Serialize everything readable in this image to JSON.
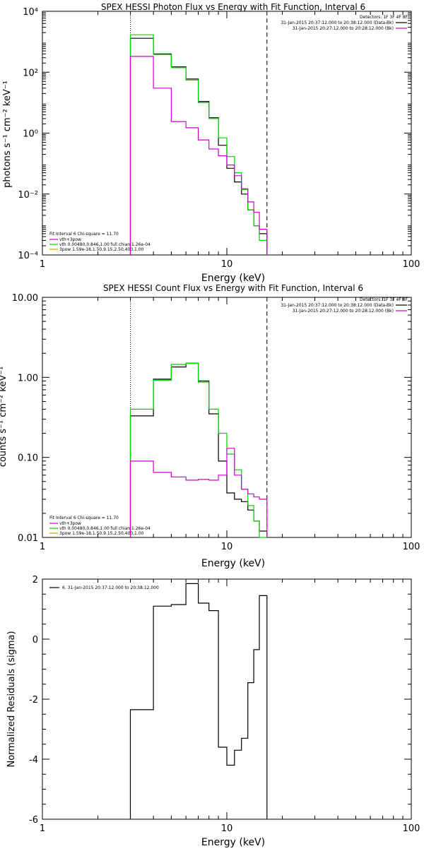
{
  "colors": {
    "foreground": "#000000",
    "background": "#ffffff",
    "series_total": "#000000",
    "series_bkg": "#d000d0",
    "series_fit": "#00d000",
    "fit_vth": "#00d000",
    "fit_3pow": "#d0a000",
    "fit_total": "#d000d0"
  },
  "chart_data": [
    {
      "type": "line",
      "title": "SPEX HESSI Photon Flux vs Energy with Fit Function, Interval 6",
      "xlabel": "Energy (keV)",
      "ylabel": "photons s⁻¹ cm⁻² keV⁻¹",
      "x_scale": "log",
      "y_scale": "log",
      "xlim": [
        1,
        100
      ],
      "ylim": [
        0.0001,
        10000
      ],
      "x_ticks": [
        {
          "v": 1,
          "label": "1"
        },
        {
          "v": 10,
          "label": "10"
        },
        {
          "v": 100,
          "label": "100"
        }
      ],
      "y_ticks": [
        {
          "v": 0.0001,
          "label": "10⁻⁴"
        },
        {
          "v": 0.01,
          "label": "10⁻²"
        },
        {
          "v": 1,
          "label": "10⁰"
        },
        {
          "v": 100,
          "label": "10²"
        },
        {
          "v": 10000,
          "label": "10⁴"
        }
      ],
      "vlines": [
        {
          "x": 3.0,
          "style": "dotted"
        },
        {
          "x": 16.5,
          "style": "dashed"
        }
      ],
      "legend_top_right": {
        "header": "Detectors: 1F 3F 4F 8F",
        "entries": [
          {
            "text": "31-Jan-2015 20:37:12.000 to 20:38:12.000 (Data-Bk)",
            "color": "#000000"
          },
          {
            "text": "31-Jan-2015 20:27:12.000 to 20:28:12.000 (Bk)",
            "color": "#d000d0"
          }
        ]
      },
      "legend_bottom_left": {
        "header": "Fit Interval 6   Chi-square = 11.70",
        "entries": [
          {
            "text": "vth+3pow",
            "color": "#d000d0"
          },
          {
            "text": "vth 0.00480,0.846,1.00  full chian 1.26e-04",
            "color": "#00d000"
          },
          {
            "text": "3pow 1.59e-18,1.50,9.15,2.50,400,1.00",
            "color": "#d0a000"
          }
        ]
      },
      "edges": [
        3.0,
        4.0,
        5.0,
        6.0,
        7.0,
        8.0,
        9.0,
        10.0,
        11.0,
        12.0,
        13.0,
        14.0,
        15.0,
        16.5
      ],
      "series": [
        {
          "color": "#000000",
          "values": [
            1300,
            400,
            150,
            60,
            11,
            3.2,
            0.4,
            0.07,
            0.025,
            0.01,
            0.003,
            0.0009,
            0.0005
          ]
        },
        {
          "color": "#00d000",
          "values": [
            1700,
            380,
            140,
            55,
            10,
            3.0,
            0.7,
            0.17,
            0.05,
            0.014,
            0.003,
            0.0009,
            0.0003
          ]
        },
        {
          "color": "#d000d0",
          "values": [
            330,
            30,
            2.4,
            1.5,
            0.6,
            0.3,
            0.18,
            0.09,
            0.04,
            0.015,
            0.0055,
            0.0025,
            0.0007
          ]
        }
      ]
    },
    {
      "type": "line",
      "title": "SPEX HESSI Count Flux vs Energy with Fit Function, Interval 6",
      "xlabel": "Energy (keV)",
      "ylabel": "counts s⁻¹ cm⁻² keV⁻¹",
      "x_scale": "log",
      "y_scale": "log",
      "xlim": [
        1,
        100
      ],
      "ylim": [
        0.01,
        10
      ],
      "x_ticks": [
        {
          "v": 1,
          "label": "1"
        },
        {
          "v": 10,
          "label": "10"
        },
        {
          "v": 100,
          "label": "100"
        }
      ],
      "y_ticks": [
        {
          "v": 0.01,
          "label": "0.01"
        },
        {
          "v": 0.1,
          "label": "0.10"
        },
        {
          "v": 1,
          "label": "1.00"
        },
        {
          "v": 10,
          "label": "10.00"
        }
      ],
      "vlines": [
        {
          "x": 3.0,
          "style": "dotted"
        },
        {
          "x": 16.5,
          "style": "dashed"
        }
      ],
      "legend_top_right": {
        "header": "Detectors: 1F 3F 4F 8F",
        "entries": [
          {
            "text": "31-Jan-2015 20:37:12.000 to 20:38:12.000 (Data-Bk)",
            "color": "#000000"
          },
          {
            "text": "31-Jan-2015 20:27:12.000 to 20:28:12.000 (Bk)",
            "color": "#d000d0"
          }
        ]
      },
      "legend_bottom_left": {
        "header": "Fit Interval 6   Chi-square = 11.70",
        "entries": [
          {
            "text": "vth+3pow",
            "color": "#d000d0"
          },
          {
            "text": "vth 0.00480,0.846,1.00  full chian 1.26e-04",
            "color": "#00d000"
          },
          {
            "text": "3pow 1.59e-18,1.50,9.15,2.50,400,1.00",
            "color": "#d0a000"
          }
        ]
      },
      "edges": [
        3.0,
        4.0,
        5.0,
        6.0,
        7.0,
        8.0,
        9.0,
        10.0,
        11.0,
        12.0,
        13.0,
        14.0,
        15.0,
        16.5
      ],
      "series": [
        {
          "color": "#000000",
          "values": [
            0.33,
            0.95,
            1.35,
            1.5,
            0.9,
            0.35,
            0.09,
            0.036,
            0.03,
            0.028,
            0.022,
            0.016,
            0.012
          ]
        },
        {
          "color": "#00d000",
          "values": [
            0.4,
            0.92,
            1.45,
            1.5,
            0.87,
            0.4,
            0.2,
            0.11,
            0.07,
            0.04,
            0.025,
            0.016,
            0.01
          ]
        },
        {
          "color": "#d000d0",
          "values": [
            0.09,
            0.065,
            0.057,
            0.052,
            0.053,
            0.052,
            0.06,
            0.13,
            0.06,
            0.04,
            0.035,
            0.032,
            0.03
          ]
        }
      ]
    },
    {
      "type": "line",
      "title": "",
      "xlabel": "Energy (keV)",
      "ylabel": "Normalized Residuals (sigma)",
      "x_scale": "log",
      "y_scale": "linear",
      "xlim": [
        1,
        100
      ],
      "ylim": [
        -6,
        2
      ],
      "x_ticks": [
        {
          "v": 1,
          "label": "1"
        },
        {
          "v": 10,
          "label": "10"
        },
        {
          "v": 100,
          "label": "100"
        }
      ],
      "y_ticks": [
        {
          "v": -6,
          "label": "-6"
        },
        {
          "v": -4,
          "label": "-4"
        },
        {
          "v": -2,
          "label": "-2"
        },
        {
          "v": 0,
          "label": "0"
        },
        {
          "v": 2,
          "label": "2"
        }
      ],
      "vlines": [],
      "legend_top_left": {
        "entries": [
          {
            "text": "6. 31-Jan-2015 20:37:12.000 to 20:38:12.000",
            "color": "#000000"
          }
        ]
      },
      "edges": [
        3.0,
        4.0,
        5.0,
        6.0,
        7.0,
        8.0,
        9.0,
        10.0,
        11.0,
        12.0,
        13.0,
        14.0,
        15.0,
        16.5
      ],
      "series": [
        {
          "color": "#000000",
          "values": [
            -2.35,
            1.1,
            1.15,
            1.85,
            1.2,
            0.95,
            -3.6,
            -4.2,
            -3.7,
            -3.3,
            -1.45,
            -0.35,
            1.45
          ]
        }
      ]
    }
  ]
}
